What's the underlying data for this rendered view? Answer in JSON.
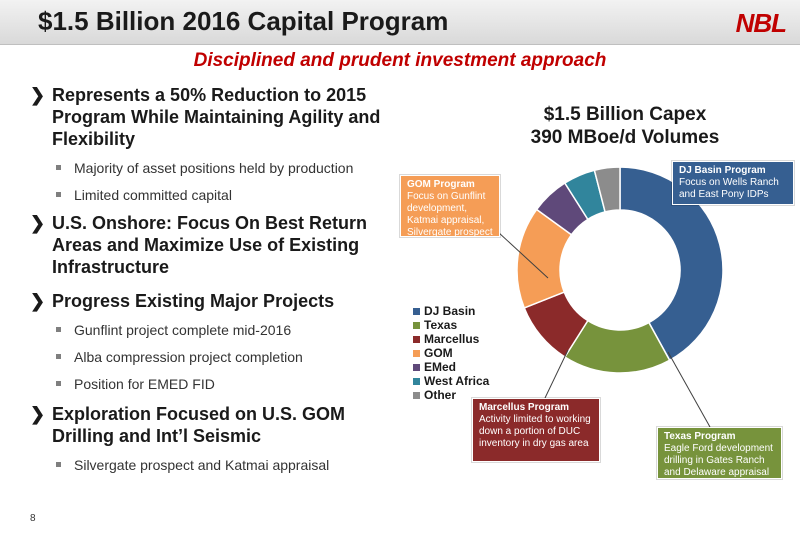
{
  "header": {
    "title": "$1.5 Billion 2016 Capital Program",
    "logo": "NBL"
  },
  "subtitle": "Disciplined and prudent investment approach",
  "bullets": [
    {
      "text": "Represents a 50% Reduction to 2015 Program While Maintaining Agility and Flexibility",
      "subs": [
        "Majority of asset positions held by production",
        "Limited committed capital"
      ]
    },
    {
      "text": "U.S. Onshore: Focus On Best Return Areas and Maximize Use of Existing Infrastructure",
      "subs": []
    },
    {
      "text": "Progress Existing Major Projects",
      "subs": [
        "Gunflint project complete mid-2016",
        "Alba compression project completion",
        "Position for EMED FID"
      ]
    },
    {
      "text": "Exploration Focused on U.S. GOM Drilling and Int’l Seismic",
      "subs": [
        "Silvergate prospect and Katmai appraisal"
      ]
    }
  ],
  "chart_title": {
    "line1": "$1.5 Billion Capex",
    "line2": "390 MBoe/d Volumes"
  },
  "chart_data": {
    "type": "pie",
    "title": "$1.5 Billion Capex",
    "categories": [
      "DJ Basin",
      "Texas",
      "Marcellus",
      "GOM",
      "EMed",
      "West Africa",
      "Other"
    ],
    "values": [
      42,
      17,
      10,
      16,
      6,
      5,
      4
    ],
    "colors": [
      "#365f91",
      "#77933c",
      "#8b2a2a",
      "#f59d56",
      "#5f497a",
      "#31859c",
      "#8c8c8c"
    ],
    "legend_position": "left"
  },
  "callouts": {
    "dj": {
      "head": "DJ Basin Program",
      "body": "Focus on Wells Ranch and East Pony IDPs",
      "color": "#365f91"
    },
    "gom": {
      "head": "GOM Program",
      "body": "Focus on Gunflint development, Katmai appraisal, Silvergate prospect",
      "color": "#f59d56"
    },
    "marcellus": {
      "head": "Marcellus Program",
      "body": "Activity limited to working down a portion of DUC inventory in dry gas area",
      "color": "#8b2a2a"
    },
    "texas": {
      "head": "Texas Program",
      "body": "Eagle Ford development drilling in Gates Ranch and Delaware appraisal",
      "color": "#77933c"
    }
  },
  "footer": {
    "page_number": "8"
  }
}
